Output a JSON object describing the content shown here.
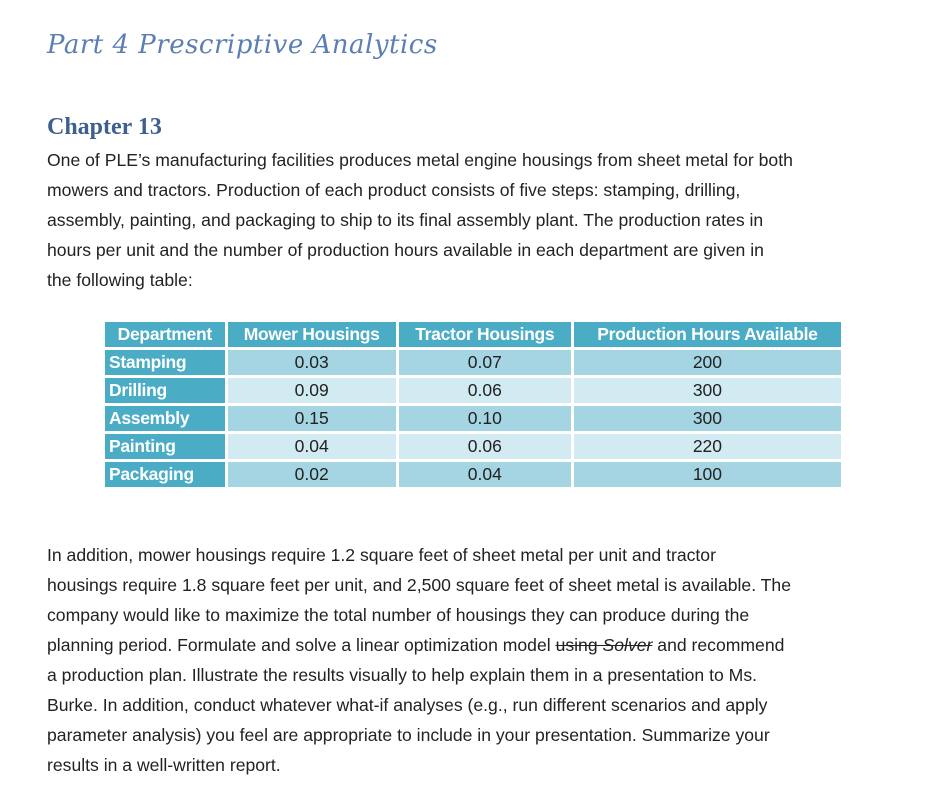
{
  "part_title": "Part 4 Prescriptive Analytics",
  "chapter_title": "Chapter 13",
  "paragraph1": [
    "One of PLE’s manufacturing facilities produces metal engine housings from sheet metal for both",
    "mowers and tractors. Production of each product consists of five steps: stamping, drilling,",
    "assembly, painting, and packaging to ship to its final assembly plant. The production rates in",
    "hours per unit and the number of production hours available in each department are given in",
    "the following table:"
  ],
  "table": {
    "headers": [
      "Department",
      "Mower Housings",
      "Tractor Housings",
      "Production Hours Available"
    ],
    "rows": [
      [
        "Stamping",
        "0.03",
        "0.07",
        "200"
      ],
      [
        "Drilling",
        "0.09",
        "0.06",
        "300"
      ],
      [
        "Assembly",
        "0.15",
        "0.10",
        "300"
      ],
      [
        "Painting",
        "0.04",
        "0.06",
        "220"
      ],
      [
        "Packaging",
        "0.02",
        "0.04",
        "100"
      ]
    ]
  },
  "paragraph2": {
    "lines_before": [
      "In addition, mower housings require 1.2 square feet of sheet metal per unit and tractor",
      "housings require 1.8 square feet per unit, and 2,500 square feet of sheet metal is available. The",
      "company would like to maximize the total number of housings they can produce during the"
    ],
    "line4_start": "planning period. Formulate and solve a linear optimization model ",
    "line4_strike_a": "using ",
    "line4_strike_b": "Solver",
    "line4_end": " and recommend",
    "lines_after": [
      "a production plan. Illustrate the results visually to help explain them in a presentation to Ms.",
      "Burke. In addition, conduct whatever what-if analyses (e.g., run different scenarios and apply",
      "parameter analysis) you feel are appropriate to include in your presentation. Summarize your",
      "results in a well-written report."
    ]
  },
  "colors": {
    "table_header": "#4bacc6",
    "row_odd": "#a5d5e2",
    "row_even": "#d2eaf1",
    "title": "#5b7fb4"
  }
}
